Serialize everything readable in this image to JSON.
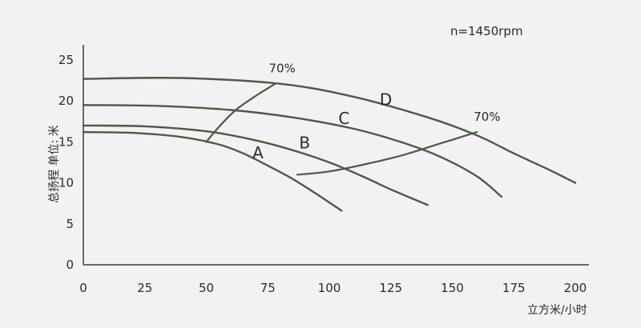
{
  "chart_data": {
    "type": "line",
    "title": "",
    "xlabel": "立方米/小时",
    "ylabel": "总扬程 单位: 米",
    "xlim": [
      0,
      200
    ],
    "ylim": [
      0,
      25
    ],
    "x_ticks": [
      "0",
      "25",
      "50",
      "75",
      "100",
      "125",
      "150",
      "175",
      "200"
    ],
    "y_ticks": [
      "0",
      "5",
      "10",
      "15",
      "20",
      "25"
    ],
    "grid": false,
    "annotation_rpm": "n=1450rpm",
    "line_color": "#4b5a47",
    "series": [
      {
        "name": "A",
        "x": [
          0,
          20,
          40,
          55,
          65,
          75,
          85,
          95,
          105
        ],
        "y": [
          16.2,
          16.1,
          15.6,
          14.7,
          13.6,
          12.1,
          10.5,
          8.6,
          6.6
        ]
      },
      {
        "name": "B",
        "x": [
          0,
          25,
          50,
          70,
          85,
          100,
          115,
          125,
          140
        ],
        "y": [
          17.0,
          16.9,
          16.3,
          15.2,
          14.0,
          12.5,
          10.6,
          9.2,
          7.3
        ]
      },
      {
        "name": "C",
        "x": [
          0,
          30,
          60,
          85,
          110,
          130,
          145,
          160,
          170
        ],
        "y": [
          19.5,
          19.4,
          18.9,
          18.0,
          16.6,
          14.9,
          13.2,
          10.8,
          8.3
        ]
      },
      {
        "name": "D",
        "x": [
          0,
          40,
          80,
          110,
          140,
          160,
          175,
          190,
          200
        ],
        "y": [
          22.7,
          22.8,
          22.1,
          20.5,
          18.0,
          15.8,
          13.6,
          11.5,
          10.0
        ]
      }
    ],
    "efficiency_lines": [
      {
        "label": "70%",
        "x": [
          50,
          55,
          62,
          70,
          78
        ],
        "y": [
          15.0,
          16.8,
          18.9,
          20.6,
          22.1
        ]
      },
      {
        "label": "70%",
        "x": [
          87,
          100,
          115,
          130,
          145,
          160
        ],
        "y": [
          11.0,
          11.4,
          12.3,
          13.4,
          14.8,
          16.2
        ]
      }
    ],
    "curve_labels": [
      {
        "text": "A",
        "x": 71,
        "y": 13.0
      },
      {
        "text": "B",
        "x": 90,
        "y": 14.2
      },
      {
        "text": "C",
        "x": 106,
        "y": 17.2
      },
      {
        "text": "D",
        "x": 123,
        "y": 19.5
      }
    ]
  }
}
